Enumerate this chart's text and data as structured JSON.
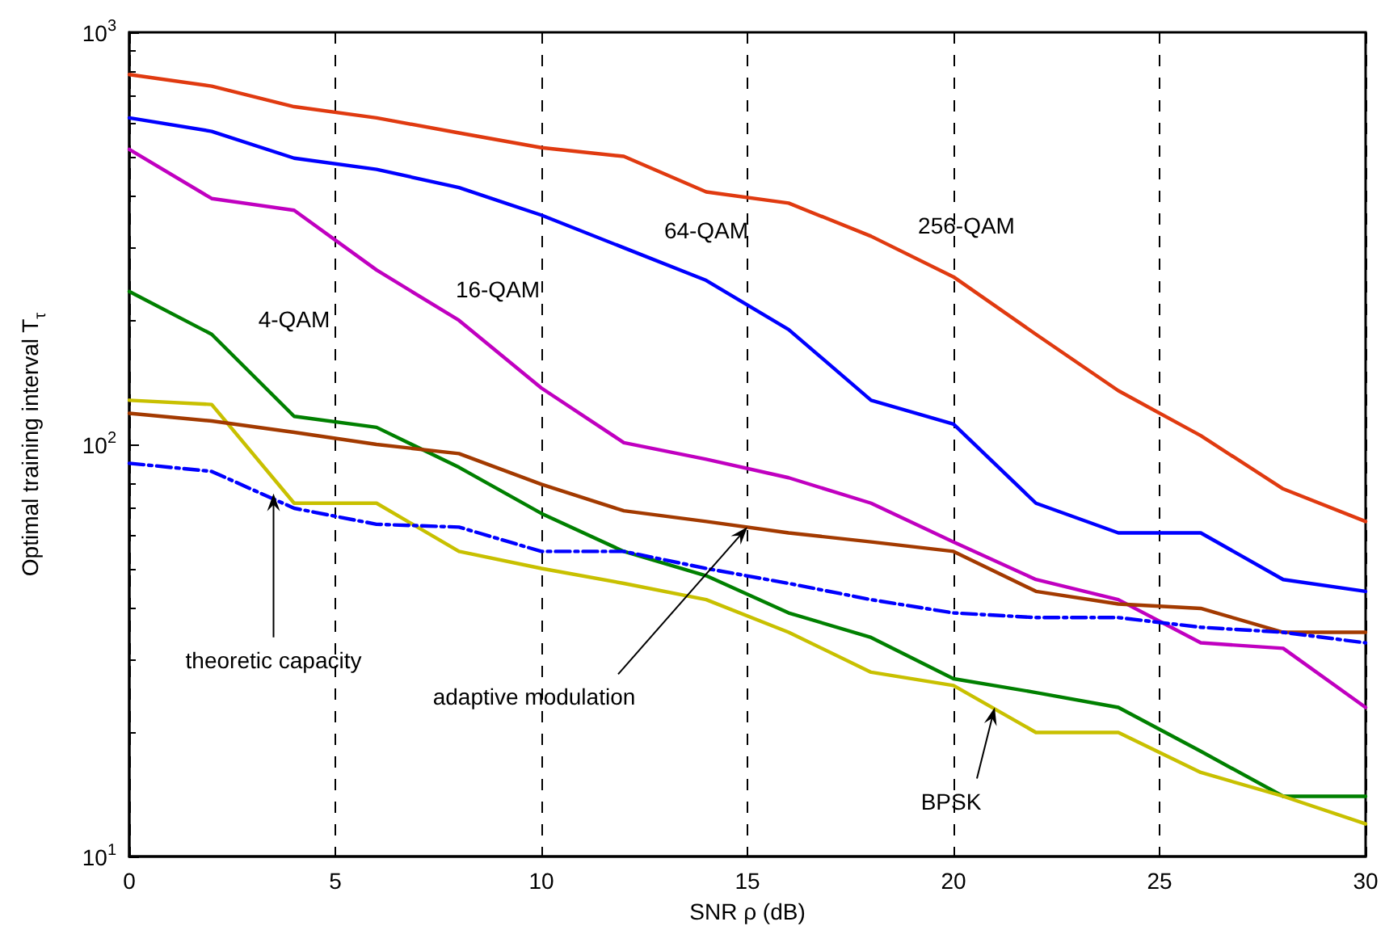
{
  "chart_data": {
    "type": "line",
    "xlabel": "SNR ρ (dB)",
    "ylabel": "Optimal training interval T$_{τ}$",
    "x": [
      0,
      2,
      4,
      6,
      8,
      10,
      12,
      14,
      16,
      18,
      20,
      22,
      24,
      26,
      28,
      30
    ],
    "series": [
      {
        "name": "256-QAM",
        "color": "#e03a10",
        "values": [
          790,
          740,
          660,
          620,
          570,
          525,
          500,
          410,
          385,
          320,
          255,
          185,
          135,
          105,
          78,
          65
        ]
      },
      {
        "name": "64-QAM",
        "color": "#0000ff",
        "values": [
          620,
          575,
          495,
          465,
          420,
          360,
          300,
          250,
          190,
          128,
          112,
          72,
          61,
          61,
          47,
          44
        ]
      },
      {
        "name": "16-QAM",
        "color": "#c000c0",
        "values": [
          520,
          395,
          370,
          265,
          200,
          137,
          101,
          92,
          83,
          72,
          58,
          47,
          42,
          33,
          32,
          23
        ]
      },
      {
        "name": "4-QAM",
        "color": "#008000",
        "values": [
          235,
          185,
          117,
          110,
          88,
          68,
          55,
          48,
          39,
          34,
          27,
          25,
          23,
          18,
          14,
          14
        ]
      },
      {
        "color": "#c8c000",
        "values": [
          128,
          125,
          72,
          72,
          55,
          50,
          46,
          42,
          35,
          28,
          26,
          20,
          20,
          16,
          14,
          12
        ]
      },
      {
        "color": "#a33a00",
        "values": [
          119,
          114,
          107,
          100,
          95,
          80,
          69,
          65,
          61,
          58,
          55,
          44,
          41,
          40,
          35,
          35
        ]
      },
      {
        "color": "#0000ff",
        "line_style": "dashed",
        "values": [
          90,
          86,
          70,
          64,
          63,
          55,
          55,
          50,
          46,
          42,
          39,
          38,
          38,
          36,
          35,
          33
        ]
      }
    ],
    "annotations": [
      {
        "text": "theoretic capacity",
        "x": 3.5,
        "y": 76
      },
      {
        "text": "adaptive modulation",
        "x": 15,
        "y": 63
      },
      {
        "text": "BPSK",
        "x": 21,
        "y": 23
      }
    ],
    "xlim": [
      0,
      30
    ],
    "xticks": [
      0,
      5,
      10,
      15,
      20,
      25,
      30
    ],
    "ylim": [
      10,
      1000
    ],
    "yticks": [
      {
        "value": 10,
        "label": "10$^{1}$"
      },
      {
        "value": 100,
        "label": "10$^{2}$"
      },
      {
        "value": 1000,
        "label": "10$^{3}$"
      }
    ],
    "log": "y",
    "grid": "x",
    "legend": false,
    "marker": "none",
    "line_style": "solid"
  }
}
